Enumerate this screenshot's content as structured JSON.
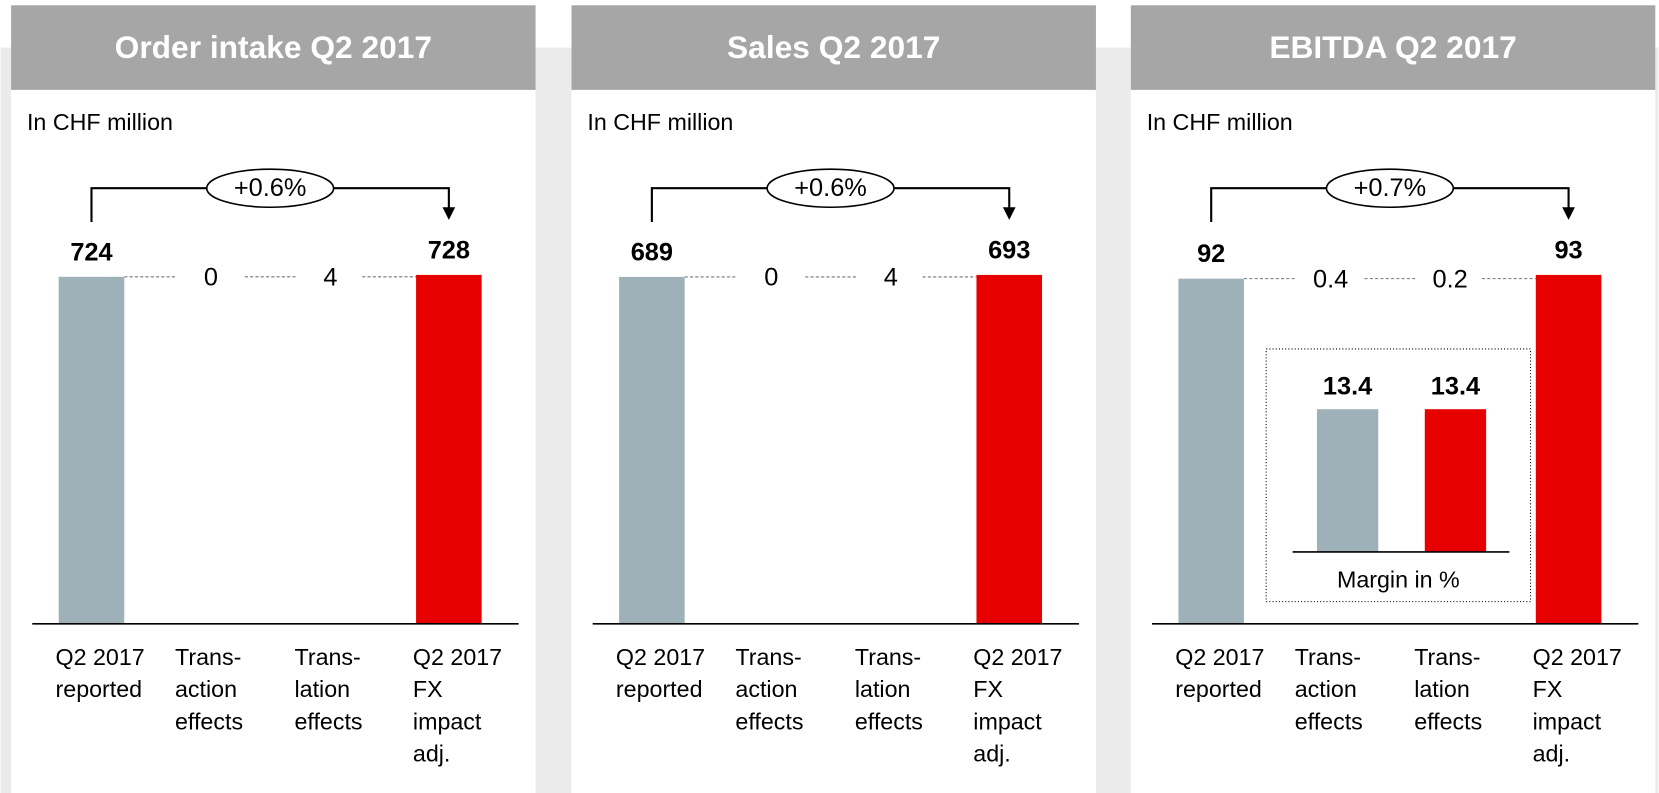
{
  "chart_data": [
    {
      "type": "waterfall",
      "title": "Order intake Q2 2017",
      "subtitle": "In CHF million",
      "annotation": "+0.6%",
      "categories": [
        [
          "Q2 2017",
          "reported"
        ],
        [
          "Trans-",
          "action",
          "effects"
        ],
        [
          "Trans-",
          "lation",
          "effects"
        ],
        [
          "Q2 2017",
          "FX",
          "impact",
          "adj."
        ]
      ],
      "values": [
        724,
        0,
        4,
        728
      ],
      "colors": [
        "#9eb1b9",
        null,
        null,
        "#e60000"
      ]
    },
    {
      "type": "waterfall",
      "title": "Sales Q2 2017",
      "subtitle": "In CHF million",
      "annotation": "+0.6%",
      "categories": [
        [
          "Q2 2017",
          "reported"
        ],
        [
          "Trans-",
          "action",
          "effects"
        ],
        [
          "Trans-",
          "lation",
          "effects"
        ],
        [
          "Q2 2017",
          "FX",
          "impact",
          "adj."
        ]
      ],
      "values": [
        689,
        0,
        4,
        693
      ],
      "colors": [
        "#9eb1b9",
        null,
        null,
        "#e60000"
      ]
    },
    {
      "type": "waterfall",
      "title": "EBITDA Q2 2017",
      "subtitle": "In CHF million",
      "annotation": "+0.7%",
      "categories": [
        [
          "Q2 2017",
          "reported"
        ],
        [
          "Trans-",
          "action",
          "effects"
        ],
        [
          "Trans-",
          "lation",
          "effects"
        ],
        [
          "Q2 2017",
          "FX",
          "impact",
          "adj."
        ]
      ],
      "values": [
        92,
        0.4,
        0.2,
        93
      ],
      "colors": [
        "#9eb1b9",
        null,
        null,
        "#e60000"
      ]
    },
    {
      "type": "bar",
      "xlabel": "Margin in %",
      "values": [
        13.4,
        13.4
      ],
      "colors": [
        "#9eb1b9",
        "#e60000"
      ]
    }
  ]
}
